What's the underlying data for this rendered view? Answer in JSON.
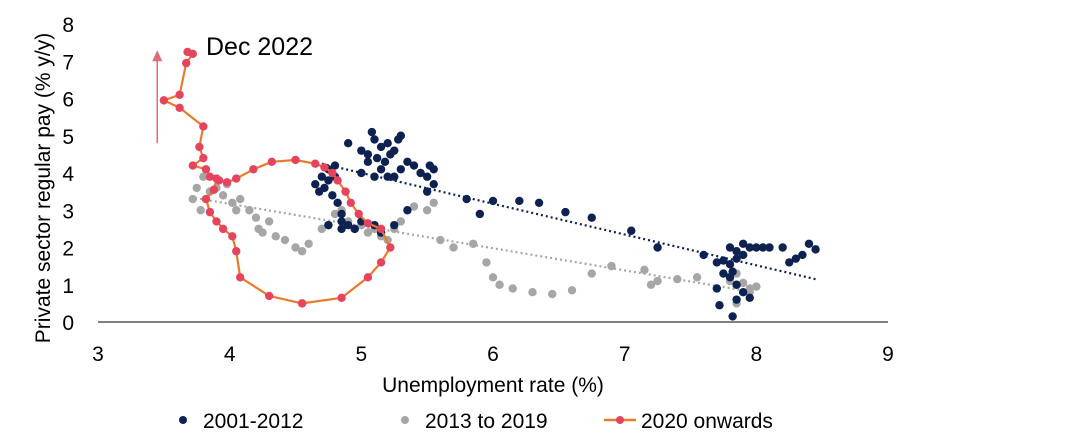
{
  "chart_data": {
    "type": "scatter",
    "title": "",
    "annotation": "Dec 2022",
    "xlabel": "Unemployment rate (%)",
    "ylabel": "Private sector regular pay (% y/y)",
    "xlim": [
      3,
      9
    ],
    "ylim": [
      0,
      8
    ],
    "xticks": [
      "3",
      "4",
      "5",
      "6",
      "7",
      "8",
      "9"
    ],
    "yticks": [
      "0",
      "1",
      "2",
      "3",
      "4",
      "5",
      "6",
      "7",
      "8"
    ],
    "colors": {
      "navy": "#0d2251",
      "gray": "#a6a6a6",
      "orange": "#e97a2b",
      "pink": "#e6445e",
      "arrow": "#e06b7b"
    },
    "legend": [
      "2001-2012",
      "2013 to 2019",
      "2020 onwards"
    ],
    "series": [
      {
        "name": "2001-2012",
        "style": "dots",
        "trendline": [
          [
            4.7,
            4.25
          ],
          [
            8.45,
            1.15
          ]
        ],
        "points": [
          [
            4.65,
            3.7
          ],
          [
            4.7,
            3.9
          ],
          [
            4.68,
            3.5
          ],
          [
            4.72,
            3.6
          ],
          [
            4.75,
            3.8
          ],
          [
            4.78,
            3.4
          ],
          [
            4.8,
            3.9
          ],
          [
            4.75,
            4.1
          ],
          [
            4.8,
            4.2
          ],
          [
            4.82,
            3.2
          ],
          [
            4.85,
            2.9
          ],
          [
            4.85,
            2.7
          ],
          [
            4.9,
            2.6
          ],
          [
            4.95,
            2.5
          ],
          [
            4.9,
            4.8
          ],
          [
            5.0,
            4.6
          ],
          [
            5.05,
            4.5
          ],
          [
            5.08,
            5.1
          ],
          [
            5.1,
            4.9
          ],
          [
            5.12,
            4.4
          ],
          [
            5.15,
            4.7
          ],
          [
            5.18,
            4.3
          ],
          [
            5.2,
            4.8
          ],
          [
            5.22,
            4.5
          ],
          [
            5.25,
            4.6
          ],
          [
            5.28,
            4.9
          ],
          [
            5.3,
            5.0
          ],
          [
            5.0,
            4.0
          ],
          [
            5.05,
            4.3
          ],
          [
            5.1,
            3.9
          ],
          [
            5.15,
            4.1
          ],
          [
            5.2,
            3.9
          ],
          [
            5.25,
            3.9
          ],
          [
            5.3,
            4.1
          ],
          [
            5.35,
            4.3
          ],
          [
            5.4,
            4.2
          ],
          [
            5.45,
            4.0
          ],
          [
            5.5,
            3.9
          ],
          [
            5.52,
            4.2
          ],
          [
            5.55,
            4.1
          ],
          [
            5.5,
            3.5
          ],
          [
            5.55,
            3.7
          ],
          [
            4.75,
            2.6
          ],
          [
            4.85,
            2.5
          ],
          [
            5.0,
            2.7
          ],
          [
            5.1,
            2.6
          ],
          [
            5.15,
            2.4
          ],
          [
            5.25,
            2.6
          ],
          [
            5.35,
            3.0
          ],
          [
            5.8,
            3.3
          ],
          [
            5.9,
            2.9
          ],
          [
            6.0,
            3.25
          ],
          [
            6.2,
            3.25
          ],
          [
            6.35,
            3.2
          ],
          [
            6.55,
            2.95
          ],
          [
            6.75,
            2.8
          ],
          [
            7.05,
            2.45
          ],
          [
            7.25,
            2.0
          ],
          [
            7.6,
            1.8
          ],
          [
            7.7,
            1.6
          ],
          [
            7.75,
            1.65
          ],
          [
            7.8,
            1.55
          ],
          [
            7.85,
            1.7
          ],
          [
            7.9,
            1.8
          ],
          [
            7.8,
            2.0
          ],
          [
            7.85,
            1.9
          ],
          [
            7.9,
            2.1
          ],
          [
            7.95,
            2.0
          ],
          [
            8.0,
            2.0
          ],
          [
            8.05,
            2.0
          ],
          [
            8.1,
            2.0
          ],
          [
            8.2,
            2.0
          ],
          [
            8.3,
            1.7
          ],
          [
            8.35,
            1.8
          ],
          [
            8.4,
            2.1
          ],
          [
            8.45,
            1.95
          ],
          [
            8.25,
            1.6
          ],
          [
            7.75,
            1.3
          ],
          [
            7.8,
            1.2
          ],
          [
            7.85,
            1.0
          ],
          [
            7.72,
            0.45
          ],
          [
            7.85,
            0.6
          ],
          [
            7.9,
            0.8
          ],
          [
            7.82,
            0.15
          ],
          [
            7.95,
            0.65
          ],
          [
            7.7,
            0.9
          ],
          [
            7.82,
            1.35
          ]
        ]
      },
      {
        "name": "2013 to 2019",
        "style": "dots",
        "trendline": [
          [
            3.7,
            3.35
          ],
          [
            7.9,
            0.85
          ]
        ],
        "points": [
          [
            3.75,
            3.6
          ],
          [
            3.8,
            3.9
          ],
          [
            3.85,
            3.5
          ],
          [
            3.78,
            3.0
          ],
          [
            3.72,
            3.3
          ],
          [
            3.9,
            3.6
          ],
          [
            3.95,
            3.4
          ],
          [
            3.98,
            3.7
          ],
          [
            4.02,
            3.2
          ],
          [
            4.05,
            3.0
          ],
          [
            4.08,
            3.3
          ],
          [
            4.15,
            3.0
          ],
          [
            4.2,
            2.8
          ],
          [
            4.22,
            2.5
          ],
          [
            4.25,
            2.4
          ],
          [
            4.3,
            2.7
          ],
          [
            4.35,
            2.3
          ],
          [
            4.42,
            2.2
          ],
          [
            4.5,
            2.0
          ],
          [
            4.55,
            1.9
          ],
          [
            4.6,
            2.1
          ],
          [
            4.7,
            2.5
          ],
          [
            4.75,
            2.6
          ],
          [
            4.8,
            2.9
          ],
          [
            4.85,
            3.0
          ],
          [
            4.9,
            2.7
          ],
          [
            4.95,
            2.5
          ],
          [
            5.0,
            2.6
          ],
          [
            5.05,
            2.4
          ],
          [
            5.1,
            2.5
          ],
          [
            5.15,
            2.3
          ],
          [
            5.2,
            2.2
          ],
          [
            5.25,
            2.5
          ],
          [
            5.3,
            2.7
          ],
          [
            5.4,
            3.1
          ],
          [
            5.5,
            3.0
          ],
          [
            5.55,
            3.2
          ],
          [
            5.6,
            2.2
          ],
          [
            5.7,
            2.0
          ],
          [
            5.85,
            2.1
          ],
          [
            5.95,
            1.6
          ],
          [
            6.0,
            1.2
          ],
          [
            6.05,
            1.0
          ],
          [
            6.15,
            0.9
          ],
          [
            6.3,
            0.8
          ],
          [
            6.45,
            0.75
          ],
          [
            6.6,
            0.85
          ],
          [
            6.75,
            1.3
          ],
          [
            6.9,
            1.5
          ],
          [
            7.15,
            1.4
          ],
          [
            7.2,
            1.0
          ],
          [
            7.25,
            1.1
          ],
          [
            7.4,
            1.15
          ],
          [
            7.55,
            1.2
          ],
          [
            7.8,
            1.1
          ],
          [
            7.85,
            1.3
          ],
          [
            7.9,
            1.05
          ],
          [
            7.95,
            0.8
          ],
          [
            7.85,
            0.5
          ],
          [
            7.95,
            0.9
          ],
          [
            8.0,
            0.95
          ]
        ]
      },
      {
        "name": "2020 onwards",
        "style": "line-markers",
        "points": [
          [
            3.68,
            7.25
          ],
          [
            3.72,
            7.2
          ],
          [
            3.67,
            6.95
          ],
          [
            3.62,
            6.1
          ],
          [
            3.5,
            5.95
          ],
          [
            3.62,
            5.75
          ],
          [
            3.8,
            5.25
          ],
          [
            3.77,
            4.7
          ],
          [
            3.8,
            4.4
          ],
          [
            3.72,
            4.2
          ],
          [
            3.82,
            4.1
          ],
          [
            3.85,
            3.9
          ],
          [
            3.92,
            3.8
          ],
          [
            3.98,
            3.75
          ],
          [
            4.05,
            3.85
          ],
          [
            4.18,
            4.1
          ],
          [
            4.32,
            4.3
          ],
          [
            4.5,
            4.35
          ],
          [
            4.65,
            4.25
          ],
          [
            4.72,
            4.15
          ],
          [
            4.78,
            4.0
          ],
          [
            4.82,
            3.8
          ],
          [
            4.88,
            3.5
          ],
          [
            4.92,
            3.2
          ],
          [
            4.98,
            2.9
          ],
          [
            5.05,
            2.65
          ],
          [
            5.15,
            2.5
          ],
          [
            5.22,
            2.0
          ],
          [
            5.15,
            1.6
          ],
          [
            5.05,
            1.2
          ],
          [
            4.85,
            0.65
          ],
          [
            4.55,
            0.5
          ],
          [
            4.3,
            0.7
          ],
          [
            4.08,
            1.2
          ],
          [
            4.05,
            1.9
          ],
          [
            4.02,
            2.3
          ],
          [
            3.95,
            2.5
          ],
          [
            3.9,
            2.7
          ],
          [
            3.85,
            2.95
          ],
          [
            3.82,
            3.3
          ],
          [
            3.88,
            3.55
          ],
          [
            3.9,
            3.85
          ]
        ]
      }
    ]
  }
}
